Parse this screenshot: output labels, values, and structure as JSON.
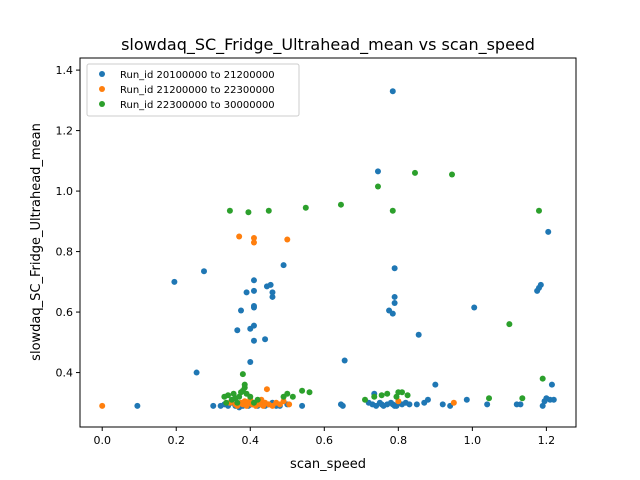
{
  "chart_data": {
    "type": "scatter",
    "title": "slowdaq_SC_Fridge_Ultrahead_mean vs scan_speed",
    "xlabel": "scan_speed",
    "ylabel": "slowdaq_SC_Fridge_Ultrahead_mean",
    "xlim": [
      -0.06,
      1.28
    ],
    "ylim": [
      0.22,
      1.44
    ],
    "xticks": [
      0.0,
      0.2,
      0.4,
      0.6,
      0.8,
      1.0,
      1.2
    ],
    "xtick_labels": [
      "0.0",
      "0.2",
      "0.4",
      "0.6",
      "0.8",
      "1.0",
      "1.2"
    ],
    "yticks": [
      0.4,
      0.6,
      0.8,
      1.0,
      1.2,
      1.4
    ],
    "ytick_labels": [
      "0.4",
      "0.6",
      "0.8",
      "1.0",
      "1.2",
      "1.4"
    ],
    "grid": false,
    "legend_position": "upper-left",
    "series": [
      {
        "name": "Run_id 20100000 to 21200000",
        "color": "#1f77b4",
        "points": [
          [
            0.095,
            0.29
          ],
          [
            0.195,
            0.7
          ],
          [
            0.255,
            0.4
          ],
          [
            0.275,
            0.735
          ],
          [
            0.3,
            0.29
          ],
          [
            0.32,
            0.29
          ],
          [
            0.33,
            0.295
          ],
          [
            0.34,
            0.29
          ],
          [
            0.35,
            0.3
          ],
          [
            0.36,
            0.29
          ],
          [
            0.365,
            0.54
          ],
          [
            0.37,
            0.285
          ],
          [
            0.375,
            0.605
          ],
          [
            0.38,
            0.29
          ],
          [
            0.385,
            0.3
          ],
          [
            0.39,
            0.665
          ],
          [
            0.395,
            0.29
          ],
          [
            0.4,
            0.545
          ],
          [
            0.4,
            0.435
          ],
          [
            0.405,
            0.295
          ],
          [
            0.41,
            0.555
          ],
          [
            0.41,
            0.505
          ],
          [
            0.41,
            0.615
          ],
          [
            0.41,
            0.705
          ],
          [
            0.41,
            0.67
          ],
          [
            0.41,
            0.62
          ],
          [
            0.42,
            0.29
          ],
          [
            0.42,
            0.3
          ],
          [
            0.43,
            0.295
          ],
          [
            0.44,
            0.29
          ],
          [
            0.44,
            0.51
          ],
          [
            0.445,
            0.685
          ],
          [
            0.45,
            0.295
          ],
          [
            0.455,
            0.69
          ],
          [
            0.46,
            0.665
          ],
          [
            0.46,
            0.65
          ],
          [
            0.46,
            0.3
          ],
          [
            0.47,
            0.29
          ],
          [
            0.48,
            0.29
          ],
          [
            0.49,
            0.755
          ],
          [
            0.5,
            0.295
          ],
          [
            0.54,
            0.29
          ],
          [
            0.645,
            0.295
          ],
          [
            0.65,
            0.29
          ],
          [
            0.655,
            0.44
          ],
          [
            0.72,
            0.3
          ],
          [
            0.73,
            0.295
          ],
          [
            0.735,
            0.33
          ],
          [
            0.74,
            0.29
          ],
          [
            0.75,
            0.3
          ],
          [
            0.755,
            0.295
          ],
          [
            0.76,
            0.29
          ],
          [
            0.77,
            0.295
          ],
          [
            0.78,
            0.3
          ],
          [
            0.79,
            0.29
          ],
          [
            0.745,
            1.065
          ],
          [
            0.775,
            0.605
          ],
          [
            0.785,
            1.33
          ],
          [
            0.79,
            0.745
          ],
          [
            0.79,
            0.65
          ],
          [
            0.79,
            0.63
          ],
          [
            0.785,
            0.595
          ],
          [
            0.785,
            0.295
          ],
          [
            0.795,
            0.29
          ],
          [
            0.8,
            0.3
          ],
          [
            0.81,
            0.295
          ],
          [
            0.82,
            0.3
          ],
          [
            0.83,
            0.295
          ],
          [
            0.85,
            0.295
          ],
          [
            0.855,
            0.525
          ],
          [
            0.87,
            0.3
          ],
          [
            0.88,
            0.31
          ],
          [
            0.9,
            0.36
          ],
          [
            0.92,
            0.295
          ],
          [
            0.94,
            0.29
          ],
          [
            0.985,
            0.31
          ],
          [
            1.005,
            0.615
          ],
          [
            1.04,
            0.295
          ],
          [
            1.12,
            0.295
          ],
          [
            1.13,
            0.295
          ],
          [
            1.175,
            0.67
          ],
          [
            1.18,
            0.68
          ],
          [
            1.185,
            0.69
          ],
          [
            1.19,
            0.29
          ],
          [
            1.195,
            0.305
          ],
          [
            1.2,
            0.315
          ],
          [
            1.205,
            0.865
          ],
          [
            1.21,
            0.31
          ],
          [
            1.215,
            0.36
          ],
          [
            1.22,
            0.31
          ]
        ]
      },
      {
        "name": "Run_id 21200000 to 22300000",
        "color": "#ff7f0e",
        "points": [
          [
            0.0,
            0.29
          ],
          [
            0.345,
            0.3
          ],
          [
            0.36,
            0.295
          ],
          [
            0.365,
            0.29
          ],
          [
            0.37,
            0.85
          ],
          [
            0.375,
            0.3
          ],
          [
            0.38,
            0.295
          ],
          [
            0.385,
            0.305
          ],
          [
            0.39,
            0.29
          ],
          [
            0.395,
            0.3
          ],
          [
            0.4,
            0.31
          ],
          [
            0.405,
            0.295
          ],
          [
            0.41,
            0.845
          ],
          [
            0.41,
            0.83
          ],
          [
            0.415,
            0.29
          ],
          [
            0.42,
            0.3
          ],
          [
            0.425,
            0.295
          ],
          [
            0.43,
            0.31
          ],
          [
            0.435,
            0.29
          ],
          [
            0.44,
            0.3
          ],
          [
            0.445,
            0.345
          ],
          [
            0.45,
            0.295
          ],
          [
            0.46,
            0.29
          ],
          [
            0.47,
            0.3
          ],
          [
            0.48,
            0.295
          ],
          [
            0.49,
            0.305
          ],
          [
            0.5,
            0.84
          ],
          [
            0.505,
            0.295
          ],
          [
            0.8,
            0.305
          ],
          [
            0.95,
            0.3
          ]
        ]
      },
      {
        "name": "Run_id 22300000 to 30000000",
        "color": "#2ca02c",
        "points": [
          [
            0.33,
            0.32
          ],
          [
            0.335,
            0.3
          ],
          [
            0.34,
            0.325
          ],
          [
            0.345,
            0.935
          ],
          [
            0.35,
            0.31
          ],
          [
            0.355,
            0.33
          ],
          [
            0.36,
            0.315
          ],
          [
            0.365,
            0.3
          ],
          [
            0.37,
            0.32
          ],
          [
            0.375,
            0.335
          ],
          [
            0.38,
            0.34
          ],
          [
            0.38,
            0.395
          ],
          [
            0.385,
            0.36
          ],
          [
            0.385,
            0.35
          ],
          [
            0.39,
            0.33
          ],
          [
            0.395,
            0.93
          ],
          [
            0.4,
            0.32
          ],
          [
            0.41,
            0.3
          ],
          [
            0.42,
            0.31
          ],
          [
            0.45,
            0.935
          ],
          [
            0.49,
            0.32
          ],
          [
            0.5,
            0.33
          ],
          [
            0.515,
            0.32
          ],
          [
            0.54,
            0.34
          ],
          [
            0.55,
            0.945
          ],
          [
            0.56,
            0.335
          ],
          [
            0.645,
            0.955
          ],
          [
            0.71,
            0.31
          ],
          [
            0.735,
            0.32
          ],
          [
            0.745,
            1.015
          ],
          [
            0.755,
            0.325
          ],
          [
            0.77,
            0.33
          ],
          [
            0.785,
            0.935
          ],
          [
            0.795,
            0.32
          ],
          [
            0.8,
            0.335
          ],
          [
            0.81,
            0.335
          ],
          [
            0.825,
            0.325
          ],
          [
            0.845,
            1.06
          ],
          [
            0.945,
            1.055
          ],
          [
            1.045,
            0.315
          ],
          [
            1.1,
            0.56
          ],
          [
            1.135,
            0.315
          ],
          [
            1.18,
            0.935
          ],
          [
            1.19,
            0.38
          ]
        ]
      }
    ]
  }
}
